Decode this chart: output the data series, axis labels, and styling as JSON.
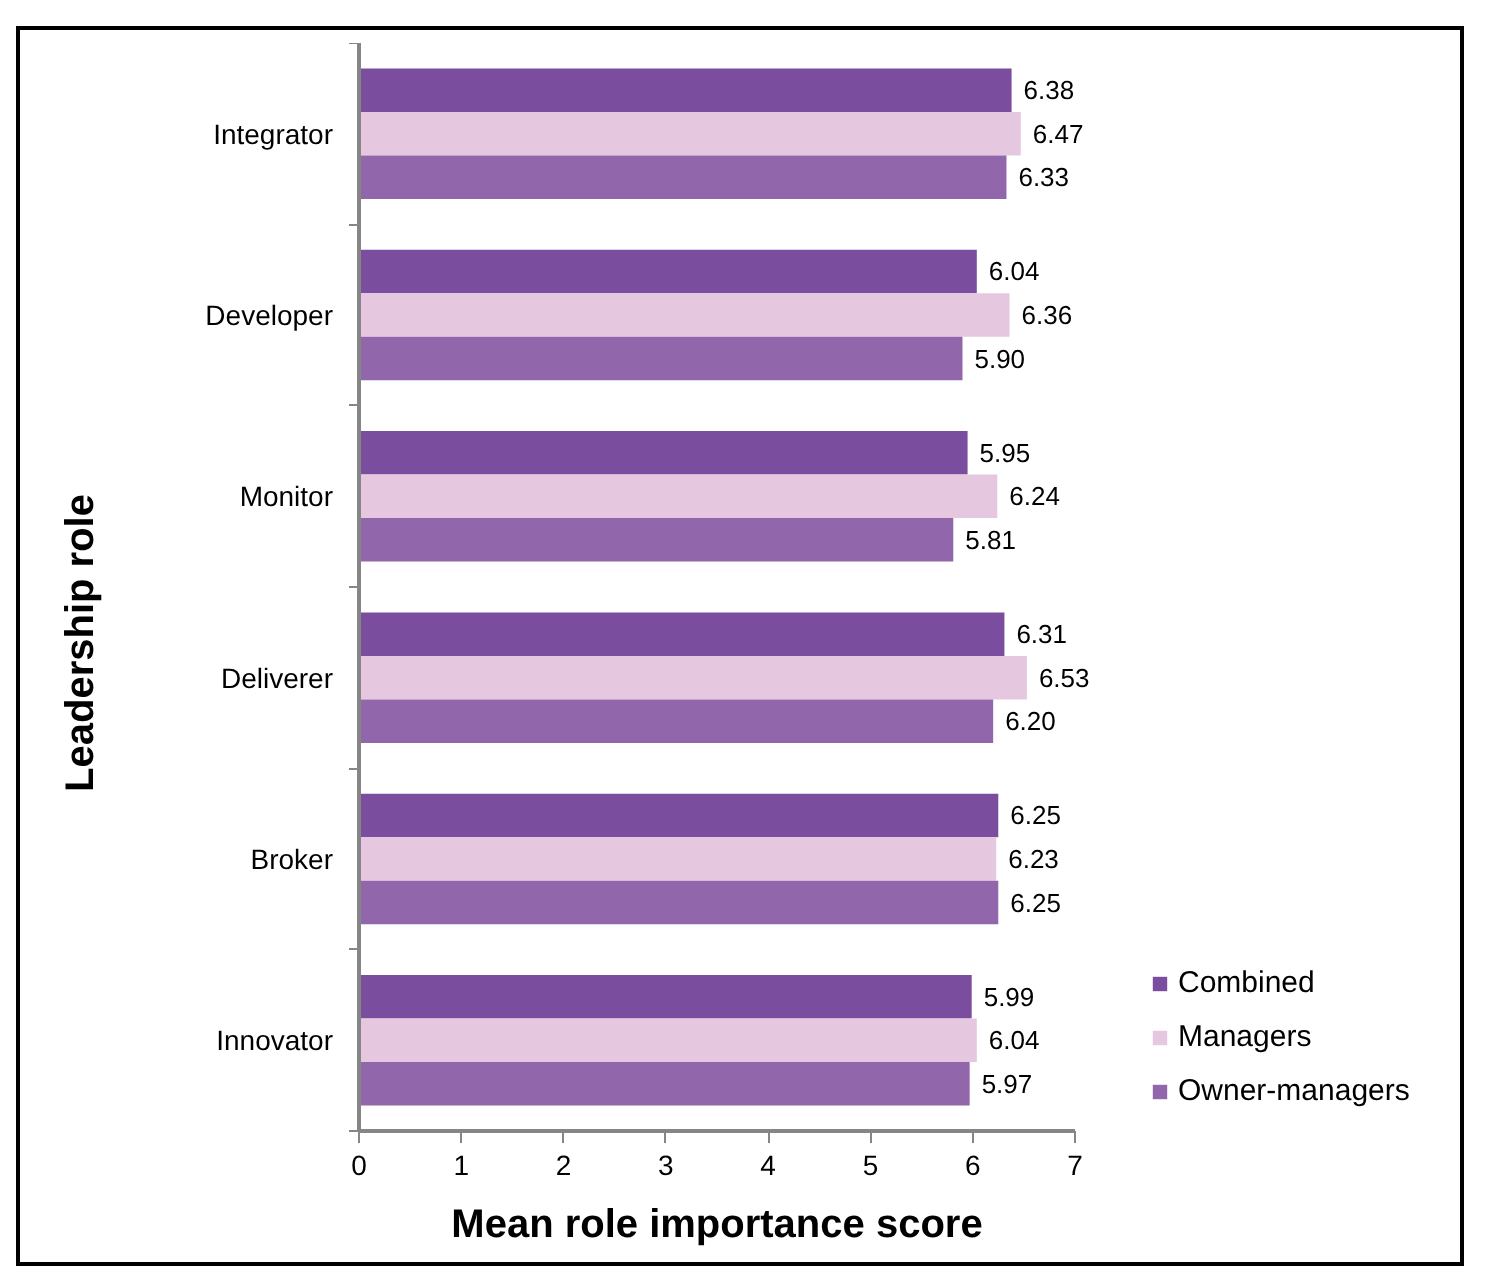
{
  "chart_data": {
    "type": "bar",
    "orientation": "horizontal",
    "xlabel": "Mean role importance score",
    "ylabel": "Leadership role",
    "categories": [
      "Integrator",
      "Developer",
      "Monitor",
      "Deliverer",
      "Broker",
      "Innovator"
    ],
    "series": [
      {
        "name": "Combined",
        "color": "#7b4d9e",
        "values": [
          6.38,
          6.04,
          5.95,
          6.31,
          6.25,
          5.99
        ],
        "value_labels": [
          "6.38",
          "6.04",
          "5.95",
          "6.31",
          "6.25",
          "5.99"
        ]
      },
      {
        "name": "Managers",
        "color": "#e5c8e0",
        "values": [
          6.47,
          6.36,
          6.24,
          6.53,
          6.23,
          6.04
        ],
        "value_labels": [
          "6.47",
          "6.36",
          "6.24",
          "6.53",
          "6.23",
          "6.04"
        ]
      },
      {
        "name": "Owner-managers",
        "color": "#9166aa",
        "values": [
          6.33,
          5.9,
          5.81,
          6.2,
          6.25,
          5.97
        ],
        "value_labels": [
          "6.33",
          "5.90",
          "5.81",
          "6.20",
          "6.25",
          "5.97"
        ]
      }
    ],
    "xlim": [
      0,
      7
    ],
    "xticks": [
      0,
      1,
      2,
      3,
      4,
      5,
      6,
      7
    ],
    "grid": false,
    "legend": "bottom right"
  }
}
